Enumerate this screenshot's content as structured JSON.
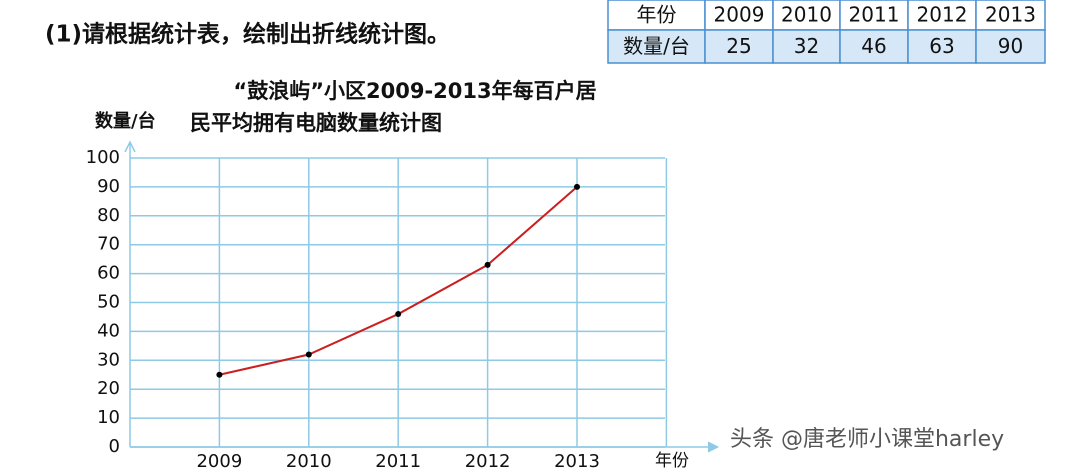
{
  "question": "(1)请根据统计表，绘制出折线统计图。",
  "table": {
    "header": [
      "年份",
      "2009",
      "2010",
      "2011",
      "2012",
      "2013"
    ],
    "rows": [
      [
        "数量/台",
        "25",
        "32",
        "46",
        "63",
        "90"
      ]
    ]
  },
  "watermark": "头条 @唐老师小课堂harley",
  "chart_data": {
    "type": "line",
    "title": [
      "“鼓浪屿”小区2009-2013年每百户居",
      "民平均拥有电脑数量统计图"
    ],
    "y_label": "数量/台",
    "x_label": "年份",
    "categories": [
      "2009",
      "2010",
      "2011",
      "2012",
      "2013"
    ],
    "series": [
      {
        "name": null,
        "color": "#cc1f1f",
        "values": [
          25,
          32,
          46,
          63,
          90
        ]
      }
    ],
    "ylim": [
      0,
      100
    ],
    "yticks": [
      0,
      10,
      20,
      30,
      40,
      50,
      60,
      70,
      80,
      90,
      100
    ],
    "grid": true,
    "grid_color": "#8ecae6"
  }
}
